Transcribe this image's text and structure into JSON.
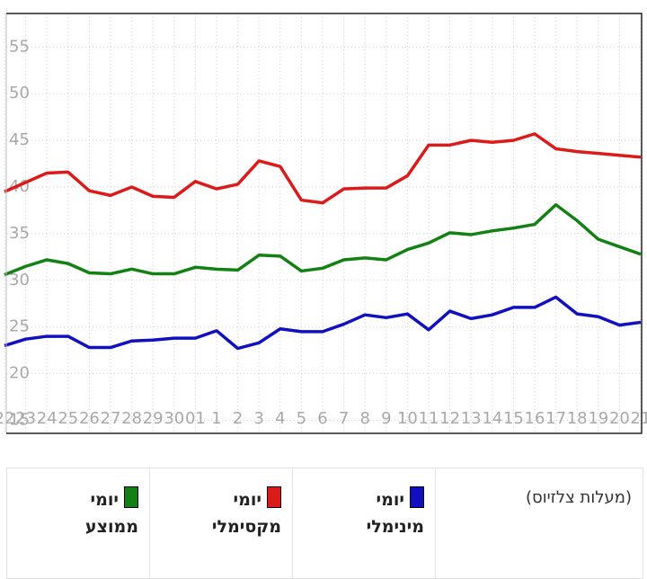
{
  "chart_data": {
    "type": "line",
    "categories": [
      "22",
      "23",
      "24",
      "25",
      "26",
      "27",
      "28",
      "29",
      "30",
      "01",
      "1",
      "2",
      "3",
      "4",
      "5",
      "6",
      "7",
      "8",
      "9",
      "10",
      "11",
      "12",
      "13",
      "14",
      "15",
      "16",
      "17",
      "18",
      "19",
      "20",
      "21"
    ],
    "unit_label": "(מעלות צלזיוס)",
    "ylim": [
      13.6,
      58.6
    ],
    "yticks": [
      15,
      20,
      25,
      30,
      35,
      40,
      45,
      50,
      55
    ],
    "grid": true,
    "series": [
      {
        "name": "יומי מינימלי",
        "color": "#1010c0",
        "values": [
          23.0,
          23.7,
          24.0,
          24.0,
          22.8,
          22.8,
          23.5,
          23.6,
          23.8,
          23.8,
          24.6,
          22.7,
          23.3,
          24.8,
          24.5,
          24.5,
          25.3,
          26.3,
          26.0,
          26.4,
          24.7,
          26.7,
          25.9,
          26.3,
          27.1,
          27.1,
          28.2,
          26.4,
          26.1,
          25.2,
          25.5
        ]
      },
      {
        "name": "יומי מקסימלי",
        "color": "#dd1a1a",
        "values": [
          39.5,
          40.5,
          41.5,
          41.6,
          39.6,
          39.1,
          40.0,
          39.0,
          38.9,
          40.6,
          39.8,
          40.3,
          42.8,
          42.2,
          38.6,
          38.3,
          39.8,
          39.9,
          39.9,
          41.2,
          44.5,
          44.5,
          45.0,
          44.8,
          45.0,
          45.7,
          44.1,
          43.8,
          43.6,
          43.4,
          43.2
        ]
      },
      {
        "name": "יומי ממוצע",
        "color": "#138013",
        "values": [
          30.6,
          31.5,
          32.2,
          31.8,
          30.8,
          30.7,
          31.2,
          30.7,
          30.7,
          31.4,
          31.2,
          31.1,
          32.7,
          32.6,
          31.0,
          31.3,
          32.2,
          32.4,
          32.2,
          33.3,
          34.0,
          35.1,
          34.9,
          35.3,
          35.6,
          36.0,
          38.1,
          36.4,
          34.4,
          33.6,
          32.8
        ]
      }
    ]
  }
}
